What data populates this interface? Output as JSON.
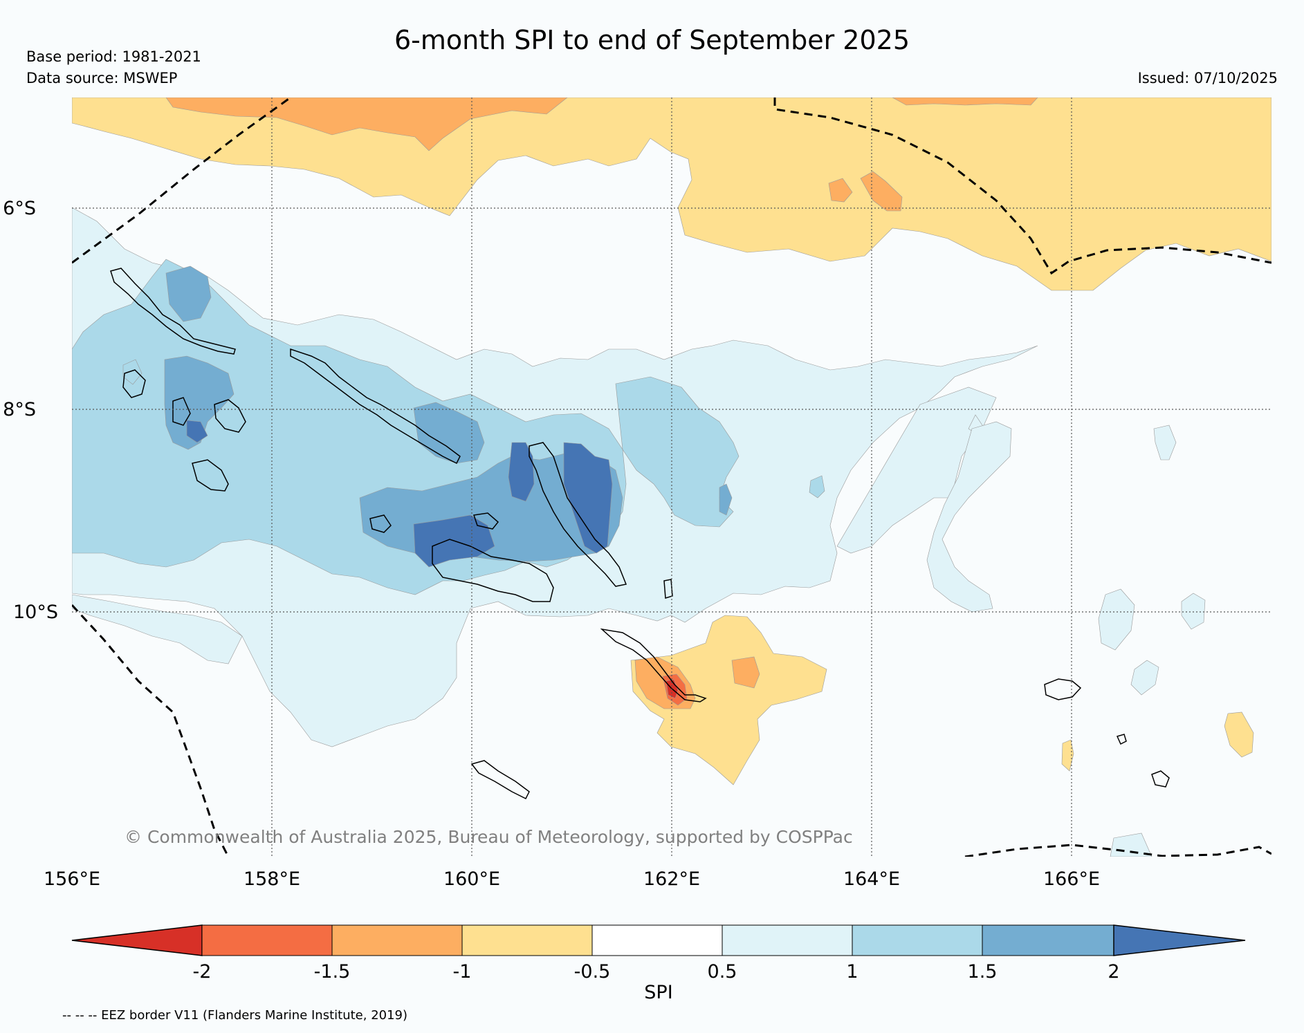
{
  "header": {
    "title": "6-month SPI to end of September 2025",
    "base_period": "Base period: 1981-2021",
    "data_source": "Data source: MSWEP",
    "issued": "Issued: 07/10/2025"
  },
  "map": {
    "latitude_labels": [
      "6°S",
      "8°S",
      "10°S"
    ],
    "longitude_labels": [
      "156°E",
      "158°E",
      "160°E",
      "162°E",
      "164°E",
      "166°E"
    ],
    "copyright": "© Commonwealth of Australia 2025, Bureau of Meteorology, supported by COSPPac",
    "colors": {
      "ocean": "#f9fcfd",
      "wet_0_5": "#e0f3f8",
      "wet_1": "#abd9e9",
      "wet_1_5": "#74add1",
      "wet_2": "#4575b4",
      "dry_0_5": "#fee090",
      "dry_1": "#fdae61",
      "dry_1_5": "#f46d43",
      "dry_2": "#d73027"
    }
  },
  "colorbar": {
    "label": "SPI",
    "ticks": [
      "-2",
      "-1.5",
      "-1",
      "-0.5",
      "0.5",
      "1",
      "1.5",
      "2"
    ],
    "colors": [
      "#d73027",
      "#f46d43",
      "#fdae61",
      "#fee090",
      "#ffffff",
      "#e0f3f8",
      "#abd9e9",
      "#74add1",
      "#4575b4"
    ]
  },
  "legend": {
    "eez_note": "-- -- -- EEZ border V11 (Flanders Marine Institute, 2019)"
  }
}
